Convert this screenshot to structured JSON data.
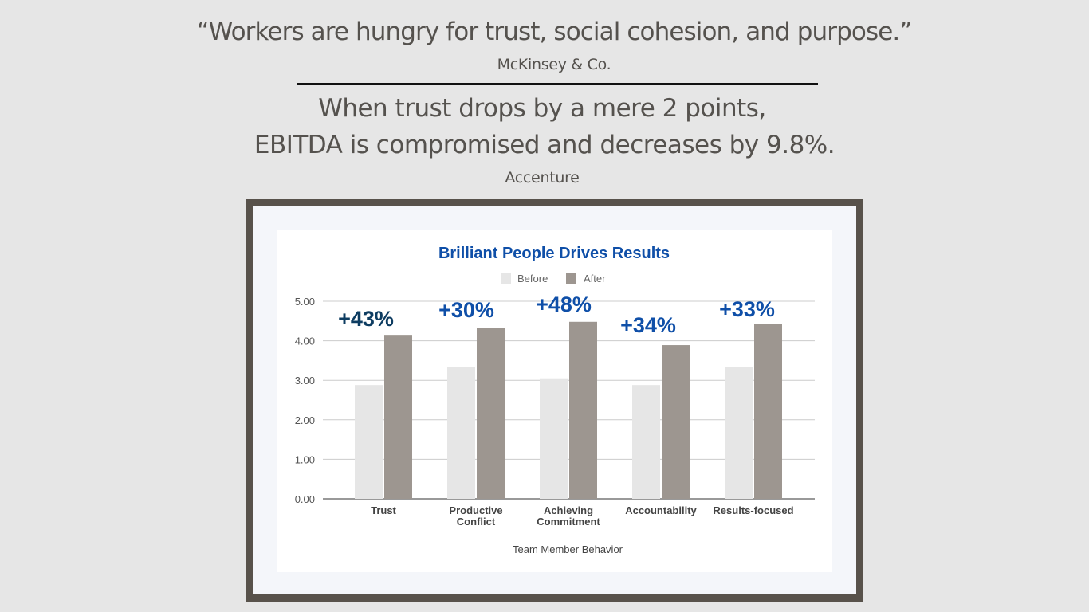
{
  "header": {
    "quote": "“Workers are hungry for trust, social cohesion, and purpose.”",
    "quote_source": "McKinsey & Co.",
    "stat_line1": "When trust drops by a mere 2 points,",
    "stat_line2": "EBITDA is compromised and decreases by 9.8%.",
    "stat_source": "Accenture"
  },
  "chart_data": {
    "type": "bar",
    "title": "Brilliant People Drives Results",
    "xlabel": "Team Member Behavior",
    "ylabel": "",
    "ylim": [
      0,
      5
    ],
    "yticks": [
      "0.00",
      "1.00",
      "2.00",
      "3.00",
      "4.00",
      "5.00"
    ],
    "grid": true,
    "legend_position": "top-center",
    "categories": [
      [
        "Trust"
      ],
      [
        "Productive",
        "Conflict"
      ],
      [
        "Achieving",
        "Commitment"
      ],
      [
        "Accountability"
      ],
      [
        "Results-focused"
      ]
    ],
    "series": [
      {
        "name": "Before",
        "color": "#e6e6e6",
        "values": [
          2.88,
          3.33,
          3.05,
          2.88,
          3.33
        ]
      },
      {
        "name": "After",
        "color": "#9d9690",
        "values": [
          4.13,
          4.33,
          4.48,
          3.89,
          4.43
        ]
      }
    ],
    "annotations": [
      {
        "text": "+43%",
        "color": "#0d3c61"
      },
      {
        "text": "+30%",
        "color": "#0f4fa8"
      },
      {
        "text": "+48%",
        "color": "#0f4fa8"
      },
      {
        "text": "+34%",
        "color": "#0f4fa8"
      },
      {
        "text": "+33%",
        "color": "#0f4fa8"
      }
    ],
    "title_color": "#0f4fa8"
  }
}
